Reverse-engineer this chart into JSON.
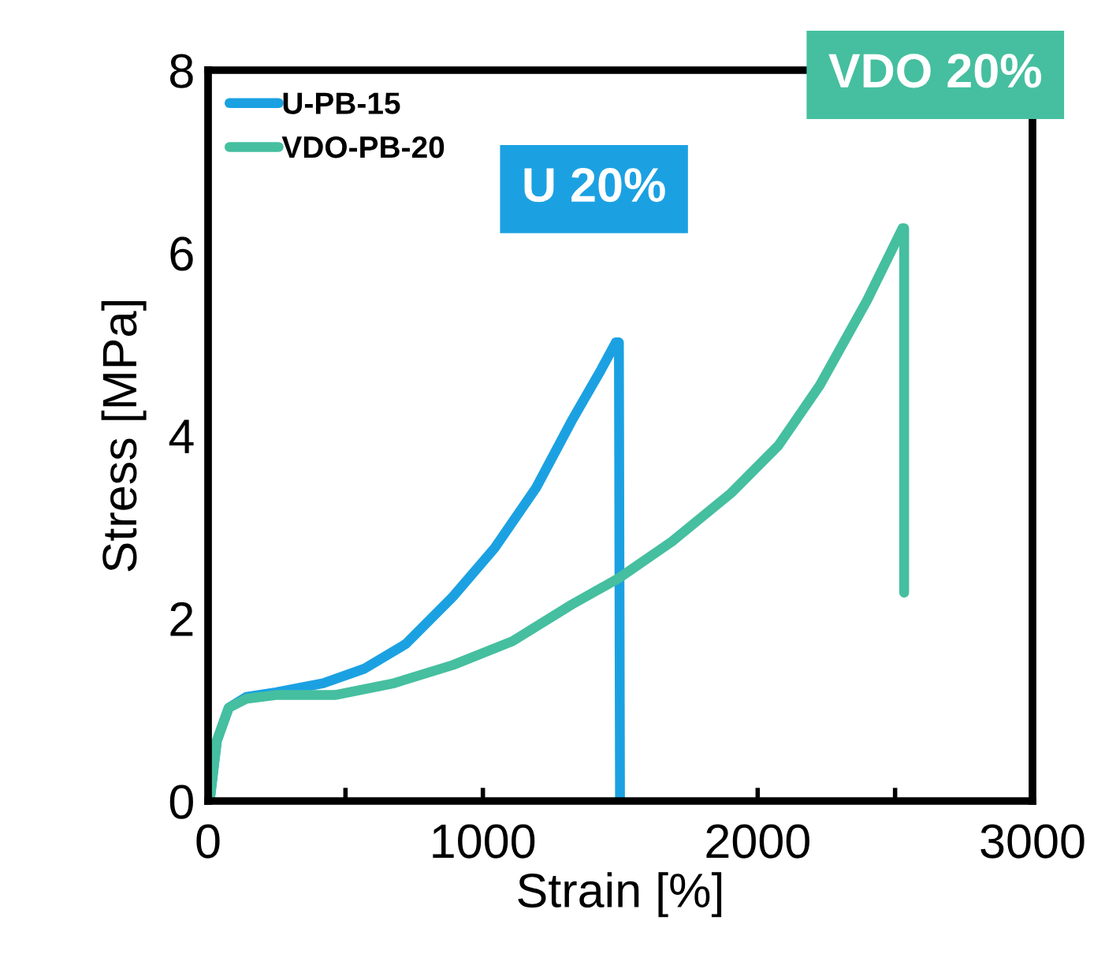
{
  "chart_data": {
    "type": "line",
    "xlabel": "Strain [%]",
    "ylabel": "Stress [MPa]",
    "xlim": [
      0,
      3000
    ],
    "ylim": [
      0,
      8
    ],
    "xticks": [
      0,
      {
        "value": 500,
        "label": null
      },
      1000,
      {
        "value": 1500,
        "label": null
      },
      2000,
      {
        "value": 2500,
        "label": null
      },
      3000
    ],
    "yticks": [
      0,
      2,
      4,
      6,
      8
    ],
    "grid": false,
    "legend": "top left",
    "marker": "none",
    "line_style": "solid",
    "series": [
      {
        "name": "U-PB-15",
        "color": "#1ba1e2",
        "x": [
          6,
          32,
          75,
          140,
          247,
          419,
          570,
          720,
          892,
          1043,
          1194,
          1323,
          1430,
          1484,
          1495,
          1499
        ],
        "values": [
          0,
          0.66,
          1.02,
          1.14,
          1.19,
          1.29,
          1.45,
          1.72,
          2.24,
          2.77,
          3.43,
          4.16,
          4.72,
          5.02,
          5.02,
          0
        ]
      },
      {
        "name": "VDO-PB-20",
        "color": "#45bf9f",
        "x": [
          6,
          32,
          75,
          140,
          247,
          462,
          677,
          892,
          1108,
          1323,
          1495,
          1688,
          1903,
          2075,
          2226,
          2398,
          2527,
          2533,
          2533
        ],
        "values": [
          0,
          0.66,
          1.02,
          1.12,
          1.16,
          1.16,
          1.29,
          1.49,
          1.75,
          2.15,
          2.44,
          2.84,
          3.37,
          3.89,
          4.55,
          5.48,
          6.27,
          6.27,
          2.28
        ]
      }
    ],
    "annotations": [
      {
        "text": "U 20%",
        "x": 1484,
        "y": 5.02
      },
      {
        "text": "VDO 20%",
        "x": 2527,
        "y": 6.27
      }
    ]
  }
}
